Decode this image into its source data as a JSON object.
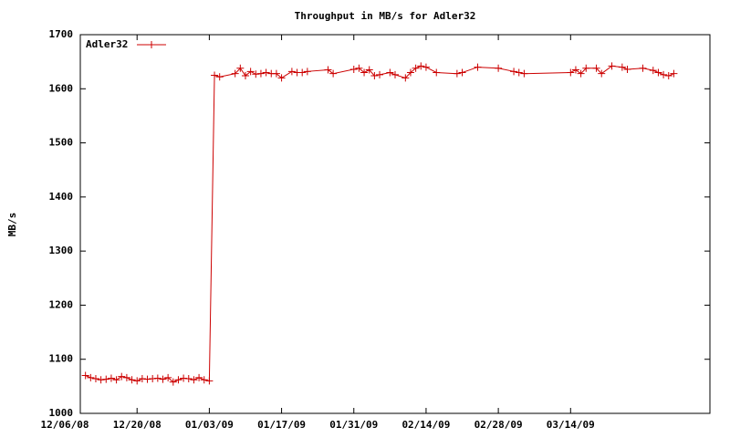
{
  "chart_data": {
    "type": "line",
    "title": "Throughput in MB/s for Adler32",
    "y_label": "MB/s",
    "x": [
      "2008-12-10",
      "2008-12-11",
      "2008-12-12",
      "2008-12-13",
      "2008-12-14",
      "2008-12-15",
      "2008-12-16",
      "2008-12-17",
      "2008-12-18",
      "2008-12-19",
      "2008-12-20",
      "2008-12-21",
      "2008-12-22",
      "2008-12-23",
      "2008-12-24",
      "2008-12-25",
      "2008-12-26",
      "2008-12-27",
      "2008-12-28",
      "2008-12-29",
      "2008-12-30",
      "2008-12-31",
      "2009-01-01",
      "2009-01-02",
      "2009-01-03",
      "2009-01-04",
      "2009-01-05",
      "2009-01-08",
      "2009-01-09",
      "2009-01-10",
      "2009-01-11",
      "2009-01-12",
      "2009-01-13",
      "2009-01-14",
      "2009-01-15",
      "2009-01-16",
      "2009-01-17",
      "2009-01-19",
      "2009-01-20",
      "2009-01-21",
      "2009-01-22",
      "2009-01-26",
      "2009-01-27",
      "2009-01-31",
      "2009-02-01",
      "2009-02-02",
      "2009-02-03",
      "2009-02-04",
      "2009-02-05",
      "2009-02-07",
      "2009-02-08",
      "2009-02-10",
      "2009-02-11",
      "2009-02-12",
      "2009-02-13",
      "2009-02-14",
      "2009-02-16",
      "2009-02-20",
      "2009-02-21",
      "2009-02-24",
      "2009-02-28",
      "2009-03-03",
      "2009-03-04",
      "2009-03-05",
      "2009-03-14",
      "2009-03-15",
      "2009-03-16",
      "2009-03-17",
      "2009-03-19",
      "2009-03-20",
      "2009-03-22",
      "2009-03-24",
      "2009-03-25",
      "2009-03-28",
      "2009-03-30",
      "2009-03-31",
      "2009-04-01",
      "2009-04-02",
      "2009-04-03"
    ],
    "series": [
      {
        "name": "Adler32",
        "color": "#cc0000",
        "values": [
          1070,
          1066,
          1064,
          1062,
          1063,
          1065,
          1062,
          1068,
          1066,
          1062,
          1060,
          1064,
          1063,
          1064,
          1065,
          1063,
          1066,
          1058,
          1062,
          1065,
          1064,
          1062,
          1066,
          1062,
          1060,
          1625,
          1622,
          1628,
          1638,
          1624,
          1632,
          1627,
          1628,
          1630,
          1628,
          1628,
          1620,
          1632,
          1630,
          1630,
          1632,
          1635,
          1628,
          1636,
          1638,
          1630,
          1635,
          1624,
          1626,
          1630,
          1626,
          1620,
          1630,
          1638,
          1642,
          1640,
          1630,
          1628,
          1630,
          1640,
          1638,
          1632,
          1630,
          1628,
          1630,
          1635,
          1628,
          1638,
          1638,
          1628,
          1642,
          1640,
          1636,
          1638,
          1634,
          1630,
          1626,
          1624,
          1628
        ]
      }
    ],
    "xlim": [
      "2008-12-09",
      "2009-04-10"
    ],
    "xticks": [
      {
        "value": "2008-12-06",
        "label": "12/06/08"
      },
      {
        "value": "2008-12-20",
        "label": "12/20/08"
      },
      {
        "value": "2009-01-03",
        "label": "01/03/09"
      },
      {
        "value": "2009-01-17",
        "label": "01/17/09"
      },
      {
        "value": "2009-01-31",
        "label": "01/31/09"
      },
      {
        "value": "2009-02-14",
        "label": "02/14/09"
      },
      {
        "value": "2009-02-28",
        "label": "02/28/09"
      },
      {
        "value": "2009-03-14",
        "label": "03/14/09"
      }
    ],
    "ylim": [
      1000,
      1700
    ],
    "yticks": [
      1000,
      1100,
      1200,
      1300,
      1400,
      1500,
      1600,
      1700
    ],
    "grid": false,
    "legend": "top-left"
  }
}
